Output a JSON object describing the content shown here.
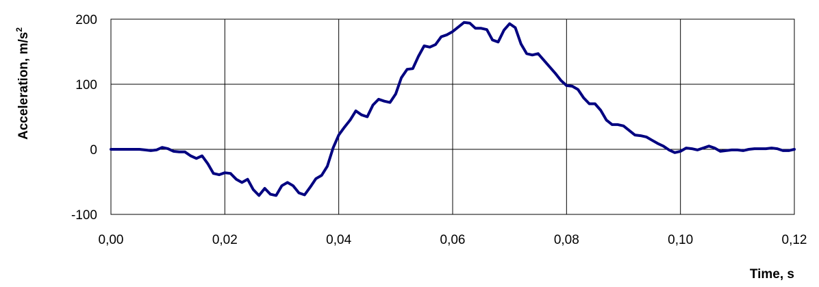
{
  "chart_data": {
    "type": "line",
    "xlabel": "Time, s",
    "ylabel": {
      "text": "Acceleration, m/s",
      "superscript": "2"
    },
    "xlim": [
      0,
      0.12
    ],
    "ylim": [
      -100,
      200
    ],
    "grid": true,
    "legend": "none",
    "x_ticks": [
      {
        "value": 0.0,
        "label": "0,00"
      },
      {
        "value": 0.02,
        "label": "0,02"
      },
      {
        "value": 0.04,
        "label": "0,04"
      },
      {
        "value": 0.06,
        "label": "0,06"
      },
      {
        "value": 0.08,
        "label": "0,08"
      },
      {
        "value": 0.1,
        "label": "0,10"
      },
      {
        "value": 0.12,
        "label": "0,12"
      }
    ],
    "y_ticks": [
      {
        "value": -100,
        "label": "-100"
      },
      {
        "value": 0,
        "label": "0"
      },
      {
        "value": 100,
        "label": "100"
      },
      {
        "value": 200,
        "label": "200"
      }
    ],
    "series": [
      {
        "color": "#000080",
        "points": [
          [
            0.0,
            0
          ],
          [
            0.002,
            0
          ],
          [
            0.004,
            0
          ],
          [
            0.005,
            0
          ],
          [
            0.006,
            -1
          ],
          [
            0.007,
            -2
          ],
          [
            0.008,
            -1
          ],
          [
            0.009,
            3
          ],
          [
            0.01,
            1
          ],
          [
            0.011,
            -3
          ],
          [
            0.012,
            -4
          ],
          [
            0.013,
            -4
          ],
          [
            0.014,
            -10
          ],
          [
            0.015,
            -14
          ],
          [
            0.016,
            -10
          ],
          [
            0.017,
            -22
          ],
          [
            0.018,
            -37
          ],
          [
            0.019,
            -39
          ],
          [
            0.02,
            -36
          ],
          [
            0.021,
            -37
          ],
          [
            0.022,
            -46
          ],
          [
            0.023,
            -51
          ],
          [
            0.024,
            -46
          ],
          [
            0.025,
            -62
          ],
          [
            0.026,
            -71
          ],
          [
            0.027,
            -60
          ],
          [
            0.028,
            -69
          ],
          [
            0.029,
            -71
          ],
          [
            0.03,
            -56
          ],
          [
            0.031,
            -51
          ],
          [
            0.032,
            -56
          ],
          [
            0.033,
            -67
          ],
          [
            0.034,
            -70
          ],
          [
            0.035,
            -58
          ],
          [
            0.036,
            -45
          ],
          [
            0.037,
            -40
          ],
          [
            0.038,
            -26
          ],
          [
            0.039,
            2
          ],
          [
            0.04,
            22
          ],
          [
            0.041,
            34
          ],
          [
            0.042,
            45
          ],
          [
            0.043,
            59
          ],
          [
            0.044,
            53
          ],
          [
            0.045,
            50
          ],
          [
            0.046,
            68
          ],
          [
            0.047,
            77
          ],
          [
            0.048,
            74
          ],
          [
            0.049,
            72
          ],
          [
            0.05,
            85
          ],
          [
            0.051,
            110
          ],
          [
            0.052,
            123
          ],
          [
            0.053,
            124
          ],
          [
            0.054,
            143
          ],
          [
            0.055,
            159
          ],
          [
            0.056,
            157
          ],
          [
            0.057,
            161
          ],
          [
            0.058,
            173
          ],
          [
            0.059,
            176
          ],
          [
            0.06,
            181
          ],
          [
            0.061,
            188
          ],
          [
            0.062,
            195
          ],
          [
            0.063,
            194
          ],
          [
            0.064,
            186
          ],
          [
            0.065,
            186
          ],
          [
            0.066,
            184
          ],
          [
            0.067,
            168
          ],
          [
            0.068,
            165
          ],
          [
            0.069,
            183
          ],
          [
            0.07,
            193
          ],
          [
            0.071,
            187
          ],
          [
            0.072,
            162
          ],
          [
            0.073,
            147
          ],
          [
            0.074,
            145
          ],
          [
            0.075,
            147
          ],
          [
            0.076,
            137
          ],
          [
            0.077,
            127
          ],
          [
            0.078,
            117
          ],
          [
            0.079,
            106
          ],
          [
            0.08,
            98
          ],
          [
            0.081,
            97
          ],
          [
            0.082,
            92
          ],
          [
            0.083,
            79
          ],
          [
            0.084,
            70
          ],
          [
            0.085,
            70
          ],
          [
            0.086,
            60
          ],
          [
            0.087,
            45
          ],
          [
            0.088,
            38
          ],
          [
            0.089,
            38
          ],
          [
            0.09,
            36
          ],
          [
            0.091,
            29
          ],
          [
            0.092,
            22
          ],
          [
            0.093,
            21
          ],
          [
            0.094,
            19
          ],
          [
            0.095,
            14
          ],
          [
            0.096,
            9
          ],
          [
            0.097,
            5
          ],
          [
            0.098,
            -1
          ],
          [
            0.099,
            -5
          ],
          [
            0.1,
            -3
          ],
          [
            0.101,
            2
          ],
          [
            0.102,
            1
          ],
          [
            0.103,
            -1
          ],
          [
            0.104,
            2
          ],
          [
            0.105,
            5
          ],
          [
            0.106,
            2
          ],
          [
            0.107,
            -3
          ],
          [
            0.108,
            -2
          ],
          [
            0.109,
            -1
          ],
          [
            0.11,
            -1
          ],
          [
            0.111,
            -2
          ],
          [
            0.112,
            0
          ],
          [
            0.113,
            1
          ],
          [
            0.114,
            1
          ],
          [
            0.115,
            1
          ],
          [
            0.116,
            2
          ],
          [
            0.117,
            1
          ],
          [
            0.118,
            -2
          ],
          [
            0.119,
            -2
          ],
          [
            0.12,
            0
          ]
        ]
      }
    ]
  }
}
